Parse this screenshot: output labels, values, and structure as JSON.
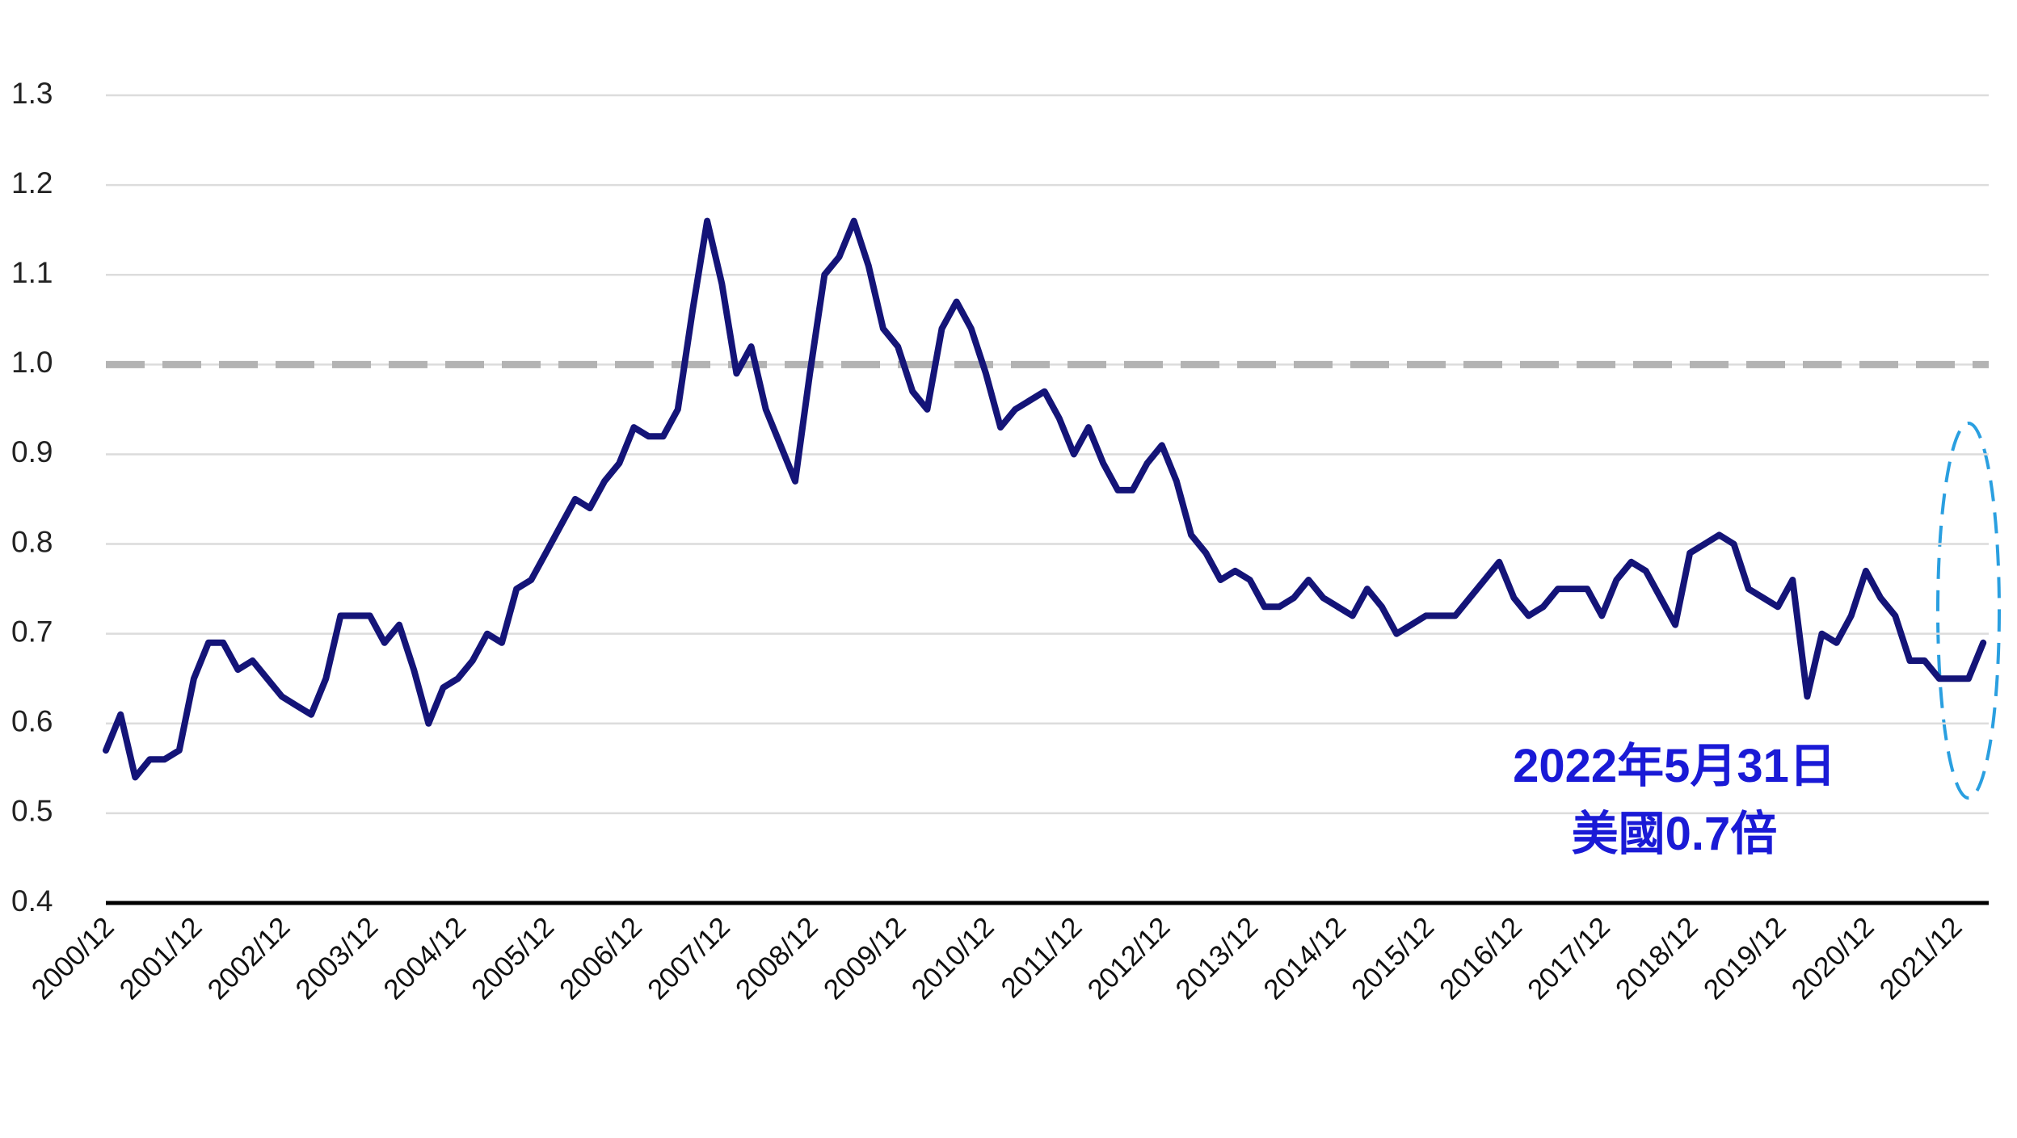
{
  "chart_data": {
    "type": "line",
    "categories": [
      "2000/12",
      null,
      null,
      null,
      null,
      null,
      "2001/12",
      null,
      null,
      null,
      null,
      null,
      "2002/12",
      null,
      null,
      null,
      null,
      null,
      "2003/12",
      null,
      null,
      null,
      null,
      null,
      "2004/12",
      null,
      null,
      null,
      null,
      null,
      "2005/12",
      null,
      null,
      null,
      null,
      null,
      "2006/12",
      null,
      null,
      null,
      null,
      null,
      "2007/12",
      null,
      null,
      null,
      null,
      null,
      "2008/12",
      null,
      null,
      null,
      null,
      null,
      "2009/12",
      null,
      null,
      null,
      null,
      null,
      "2010/12",
      null,
      null,
      null,
      null,
      null,
      "2011/12",
      null,
      null,
      null,
      null,
      null,
      "2012/12",
      null,
      null,
      null,
      null,
      null,
      "2013/12",
      null,
      null,
      null,
      null,
      null,
      "2014/12",
      null,
      null,
      null,
      null,
      null,
      "2015/12",
      null,
      null,
      null,
      null,
      null,
      "2016/12",
      null,
      null,
      null,
      null,
      null,
      "2017/12",
      null,
      null,
      null,
      null,
      null,
      "2018/12",
      null,
      null,
      null,
      null,
      null,
      "2019/12",
      null,
      null,
      null,
      null,
      null,
      "2020/12",
      null,
      null,
      null,
      null,
      null,
      "2021/12",
      null,
      null
    ],
    "values": [
      0.57,
      0.61,
      0.54,
      0.56,
      0.56,
      0.57,
      0.65,
      0.69,
      0.69,
      0.66,
      0.67,
      0.65,
      0.63,
      0.62,
      0.61,
      0.65,
      0.72,
      0.72,
      0.72,
      0.69,
      0.71,
      0.66,
      0.6,
      0.64,
      0.65,
      0.67,
      0.7,
      0.69,
      0.75,
      0.76,
      0.79,
      0.82,
      0.85,
      0.84,
      0.87,
      0.89,
      0.93,
      0.92,
      0.92,
      0.95,
      1.06,
      1.16,
      1.09,
      0.99,
      1.02,
      0.95,
      0.91,
      0.87,
      0.99,
      1.1,
      1.12,
      1.16,
      1.11,
      1.04,
      1.02,
      0.97,
      0.95,
      1.04,
      1.07,
      1.04,
      0.99,
      0.93,
      0.95,
      0.96,
      0.97,
      0.94,
      0.9,
      0.93,
      0.89,
      0.86,
      0.86,
      0.89,
      0.91,
      0.87,
      0.81,
      0.79,
      0.76,
      0.77,
      0.76,
      0.73,
      0.73,
      0.74,
      0.76,
      0.74,
      0.73,
      0.72,
      0.75,
      0.73,
      0.7,
      0.71,
      0.72,
      0.72,
      0.72,
      0.74,
      0.76,
      0.78,
      0.74,
      0.72,
      0.73,
      0.75,
      0.75,
      0.75,
      0.72,
      0.76,
      0.78,
      0.77,
      0.74,
      0.71,
      0.79,
      0.8,
      0.81,
      0.8,
      0.75,
      0.74,
      0.73,
      0.76,
      0.63,
      0.7,
      0.69,
      0.72,
      0.77,
      0.74,
      0.72,
      0.67,
      0.67,
      0.65,
      0.65,
      0.65,
      0.69
    ],
    "color": "#141478",
    "ylim": [
      0.4,
      1.3
    ],
    "yticks": [
      0.4,
      0.5,
      0.6,
      0.7,
      0.8,
      0.9,
      {
        "value": 1.0,
        "label": "1.0"
      },
      1.1,
      1.2,
      1.3
    ],
    "grid": true,
    "reference_line": {
      "value": 1.0,
      "color": "#b3b3b3"
    },
    "annotation": [
      "2022年5月31日",
      "美國0.7倍"
    ]
  }
}
